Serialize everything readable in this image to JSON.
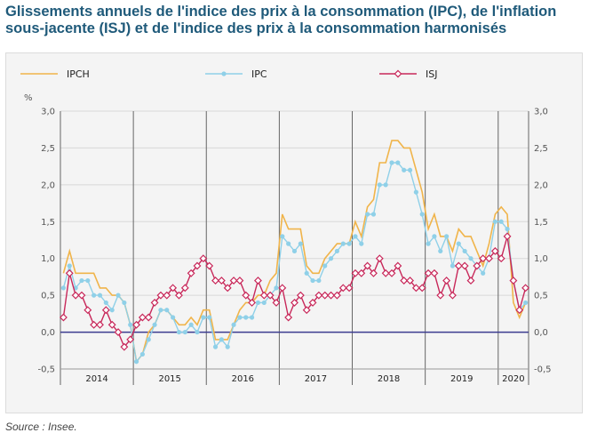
{
  "title": "Glissements annuels de l'indice des prix à la consommation (IPC), de l'inflation sous-jacente (ISJ) et de l'indice des prix à la consommation harmonisés",
  "source": "Source : Insee.",
  "colors": {
    "IPCH": "#f0b44a",
    "IPC": "#8fd0e8",
    "ISJ": "#c8285a",
    "zero_line": "#3b3b8f",
    "grid": "#d8d8d8",
    "axis_text": "#555555"
  },
  "chart_data": {
    "type": "line",
    "ylabel": "%",
    "ylim": [
      -0.5,
      3.0
    ],
    "yticks": [
      "3,0",
      "2,5",
      "2,0",
      "1,5",
      "1,0",
      "0,5",
      "0,0",
      "-0,5"
    ],
    "ytick_values": [
      3.0,
      2.5,
      2.0,
      1.5,
      1.0,
      0.5,
      0.0,
      -0.5
    ],
    "year_labels": [
      "2014",
      "2015",
      "2016",
      "2017",
      "2018",
      "2019",
      "2020"
    ],
    "x_start": "2014-01",
    "months": 77,
    "series": [
      {
        "name": "IPCH",
        "marker": "none",
        "values": [
          0.8,
          1.1,
          0.8,
          0.8,
          0.8,
          0.8,
          0.6,
          0.6,
          0.5,
          0.5,
          0.4,
          0.1,
          -0.4,
          -0.3,
          0.0,
          0.1,
          0.3,
          0.3,
          0.2,
          0.1,
          0.1,
          0.2,
          0.1,
          0.3,
          0.3,
          -0.1,
          -0.1,
          -0.1,
          0.1,
          0.3,
          0.4,
          0.4,
          0.5,
          0.5,
          0.7,
          0.8,
          1.6,
          1.4,
          1.4,
          1.4,
          0.9,
          0.8,
          0.8,
          1.0,
          1.1,
          1.2,
          1.2,
          1.2,
          1.5,
          1.3,
          1.7,
          1.8,
          2.3,
          2.3,
          2.6,
          2.6,
          2.5,
          2.5,
          2.2,
          1.9,
          1.4,
          1.6,
          1.3,
          1.3,
          1.1,
          1.4,
          1.3,
          1.3,
          1.1,
          0.9,
          1.2,
          1.6,
          1.7,
          1.6,
          0.4,
          0.2,
          0.4
        ]
      },
      {
        "name": "IPC",
        "marker": "circle",
        "values": [
          0.6,
          0.9,
          0.6,
          0.7,
          0.7,
          0.5,
          0.5,
          0.4,
          0.3,
          0.5,
          0.4,
          0.1,
          -0.4,
          -0.3,
          -0.1,
          0.1,
          0.3,
          0.3,
          0.2,
          0.0,
          0.0,
          0.1,
          0.0,
          0.2,
          0.2,
          -0.2,
          -0.1,
          -0.2,
          0.1,
          0.2,
          0.2,
          0.2,
          0.4,
          0.4,
          0.5,
          0.6,
          1.3,
          1.2,
          1.1,
          1.2,
          0.8,
          0.7,
          0.7,
          0.9,
          1.0,
          1.1,
          1.2,
          1.2,
          1.3,
          1.2,
          1.6,
          1.6,
          2.0,
          2.0,
          2.3,
          2.3,
          2.2,
          2.2,
          1.9,
          1.6,
          1.2,
          1.3,
          1.1,
          1.3,
          0.9,
          1.2,
          1.1,
          1.0,
          0.9,
          0.8,
          1.0,
          1.5,
          1.5,
          1.4,
          0.7,
          0.3,
          0.4
        ]
      },
      {
        "name": "ISJ",
        "marker": "diamond",
        "values": [
          0.2,
          0.8,
          0.5,
          0.5,
          0.3,
          0.1,
          0.1,
          0.3,
          0.1,
          0.0,
          -0.2,
          -0.1,
          0.1,
          0.2,
          0.2,
          0.4,
          0.5,
          0.5,
          0.6,
          0.5,
          0.6,
          0.8,
          0.9,
          1.0,
          0.9,
          0.7,
          0.7,
          0.6,
          0.7,
          0.7,
          0.5,
          0.4,
          0.7,
          0.5,
          0.5,
          0.4,
          0.6,
          0.2,
          0.4,
          0.5,
          0.3,
          0.4,
          0.5,
          0.5,
          0.5,
          0.5,
          0.6,
          0.6,
          0.8,
          0.8,
          0.9,
          0.8,
          1.0,
          0.8,
          0.8,
          0.9,
          0.7,
          0.7,
          0.6,
          0.6,
          0.8,
          0.8,
          0.5,
          0.7,
          0.5,
          0.9,
          0.9,
          0.7,
          0.9,
          1.0,
          1.0,
          1.1,
          1.0,
          1.3,
          0.7,
          0.3,
          0.6
        ]
      }
    ],
    "legend": [
      "IPCH",
      "IPC",
      "ISJ"
    ],
    "legend_position": "top",
    "grid": true
  }
}
